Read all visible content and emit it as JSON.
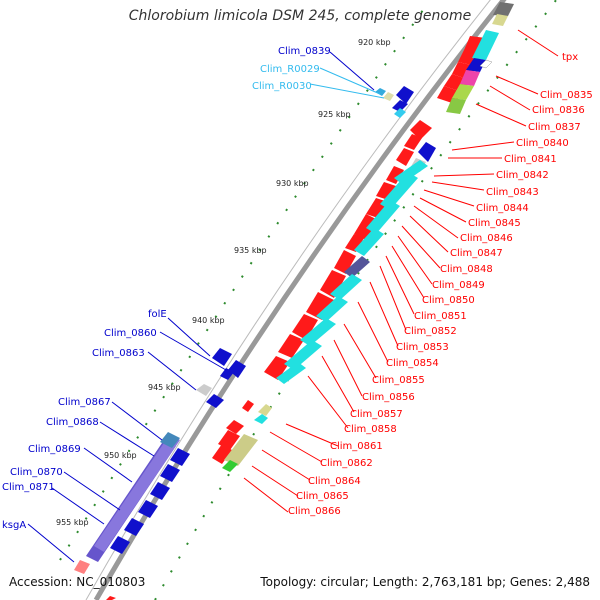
{
  "title": "Chlorobium limicola DSM 245, complete genome",
  "footer": {
    "accession": "Accession: NC_010803",
    "topology": "Topology: circular; Length: 2,763,181 bp; Genes: 2,488"
  },
  "colors": {
    "red_label": "#ff0000",
    "blue_label": "#0000cc",
    "cyan_label": "#33bbee",
    "backbone": "#888888",
    "tick": "#339933"
  },
  "ticks": [
    "920 kbp",
    "925 kbp",
    "930 kbp",
    "935 kbp",
    "940 kbp",
    "945 kbp",
    "950 kbp",
    "955 kbp"
  ],
  "left_labels": [
    "Clim_0839",
    "Clim_R0029",
    "Clim_R0030",
    "folE",
    "Clim_0860",
    "Clim_0863",
    "Clim_0867",
    "Clim_0868",
    "Clim_0869",
    "Clim_0870",
    "Clim_0871",
    "ksgA"
  ],
  "right_labels": [
    "tpx",
    "Clim_0835",
    "Clim_0836",
    "Clim_0837",
    "Clim_0840",
    "Clim_0841",
    "Clim_0842",
    "Clim_0843",
    "Clim_0844",
    "Clim_0845",
    "Clim_0846",
    "Clim_0847",
    "Clim_0848",
    "Clim_0849",
    "Clim_0850",
    "Clim_0851",
    "Clim_0852",
    "Clim_0853",
    "Clim_0854",
    "Clim_0855",
    "Clim_0856",
    "Clim_0857",
    "Clim_0858",
    "Clim_0861",
    "Clim_0862",
    "Clim_0864",
    "Clim_0865",
    "Clim_0866"
  ]
}
